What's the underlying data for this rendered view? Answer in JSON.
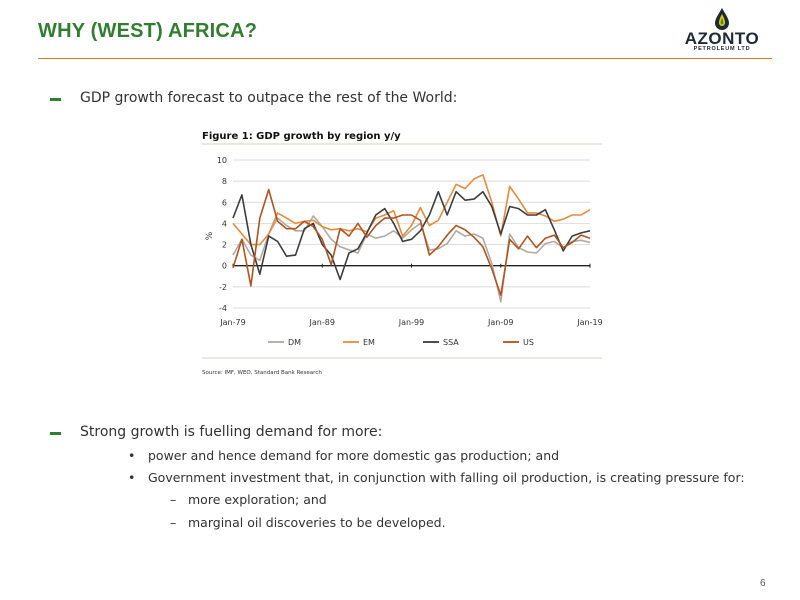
{
  "header": {
    "title": "WHY (WEST) AFRICA?",
    "logo_name": "AZONTO",
    "logo_sub": "PETROLEUM LTD"
  },
  "bullets": [
    {
      "text": "GDP growth forecast to outpace the rest of the World:"
    },
    {
      "text": "Strong growth is fuelling demand for more:"
    }
  ],
  "sub_bullets": [
    {
      "marker": "•",
      "text": "power and hence demand for more domestic gas production; and"
    },
    {
      "marker": "•",
      "text": "Government investment that, in conjunction with falling oil production, is creating pressure for:"
    },
    {
      "marker": "–",
      "text": "more exploration; and"
    },
    {
      "marker": "–",
      "text": "marginal oil discoveries to be developed."
    }
  ],
  "footer": {
    "page_number": "6"
  },
  "colors": {
    "title": "#2f7f2f",
    "accent": "#e87722",
    "DM": "#b0aaa2",
    "EM": "#ec8a3a",
    "SSA": "#3d3d3d",
    "US": "#b5531f"
  },
  "chart_data": {
    "type": "line",
    "title": "Figure 1: GDP growth by region y/y",
    "ylabel": "%",
    "xlabel": "",
    "ylim": [
      -4,
      10
    ],
    "yticks": [
      "10",
      "8",
      "6",
      "4",
      "2",
      "0",
      "-2",
      "-4"
    ],
    "xlim": [
      1979,
      2019
    ],
    "xticks": [
      {
        "value": 1979,
        "label": "Jan-79"
      },
      {
        "value": 1989,
        "label": "Jan-89"
      },
      {
        "value": 1999,
        "label": "Jan-99"
      },
      {
        "value": 2009,
        "label": "Jan-09"
      },
      {
        "value": 2019,
        "label": "Jan-19"
      }
    ],
    "legend_position": "bottom",
    "grid": true,
    "source": "Source: IMF, WEO, Standard Bank Research",
    "x": [
      1979,
      1980,
      1981,
      1982,
      1983,
      1984,
      1985,
      1986,
      1987,
      1988,
      1989,
      1990,
      1991,
      1992,
      1993,
      1994,
      1995,
      1996,
      1997,
      1998,
      1999,
      2000,
      2001,
      2002,
      2003,
      2004,
      2005,
      2006,
      2007,
      2008,
      2009,
      2010,
      2011,
      2012,
      2013,
      2014,
      2015,
      2016,
      2017,
      2018,
      2019
    ],
    "series": [
      {
        "name": "DM",
        "values": [
          1.0,
          2.5,
          1.0,
          0.5,
          3.0,
          4.5,
          3.8,
          3.3,
          3.3,
          4.7,
          3.7,
          2.5,
          1.8,
          1.5,
          1.2,
          3.0,
          2.6,
          2.8,
          3.3,
          2.6,
          3.4,
          4.0,
          1.5,
          1.6,
          2.1,
          3.3,
          2.8,
          3.0,
          2.6,
          0.2,
          -3.4,
          3.0,
          1.7,
          1.3,
          1.2,
          2.1,
          2.3,
          1.7,
          2.3,
          2.4,
          2.2
        ]
      },
      {
        "name": "EM",
        "values": [
          4.0,
          3.0,
          2.0,
          2.0,
          3.0,
          5.0,
          4.5,
          4.0,
          4.2,
          4.3,
          3.7,
          3.4,
          3.5,
          3.3,
          3.5,
          3.2,
          4.5,
          4.8,
          5.2,
          2.8,
          3.8,
          5.5,
          3.8,
          4.3,
          6.0,
          7.7,
          7.3,
          8.2,
          8.6,
          6.0,
          2.8,
          7.5,
          6.3,
          5.0,
          5.0,
          4.7,
          4.2,
          4.4,
          4.8,
          4.8,
          5.3
        ]
      },
      {
        "name": "SSA",
        "values": [
          4.5,
          6.7,
          2.0,
          -0.8,
          2.8,
          2.3,
          0.9,
          1.0,
          3.5,
          4.0,
          2.0,
          1.0,
          -1.3,
          1.2,
          1.6,
          3.1,
          4.8,
          5.4,
          4.0,
          2.3,
          2.5,
          3.3,
          4.8,
          7.0,
          4.8,
          7.0,
          6.2,
          6.3,
          7.0,
          5.6,
          3.0,
          5.6,
          5.4,
          4.8,
          4.8,
          5.3,
          3.4,
          1.4,
          2.8,
          3.1,
          3.3
        ]
      },
      {
        "name": "US",
        "values": [
          -0.2,
          2.5,
          -1.9,
          4.5,
          7.2,
          4.2,
          3.5,
          3.5,
          4.2,
          3.7,
          2.5,
          0.1,
          3.5,
          2.8,
          4.0,
          2.7,
          3.8,
          4.5,
          4.5,
          4.8,
          4.8,
          4.3,
          1.0,
          1.8,
          2.9,
          3.8,
          3.4,
          2.7,
          1.8,
          -0.3,
          -2.8,
          2.5,
          1.6,
          2.8,
          1.7,
          2.6,
          2.9,
          1.7,
          2.2,
          2.9,
          2.6
        ]
      }
    ]
  }
}
